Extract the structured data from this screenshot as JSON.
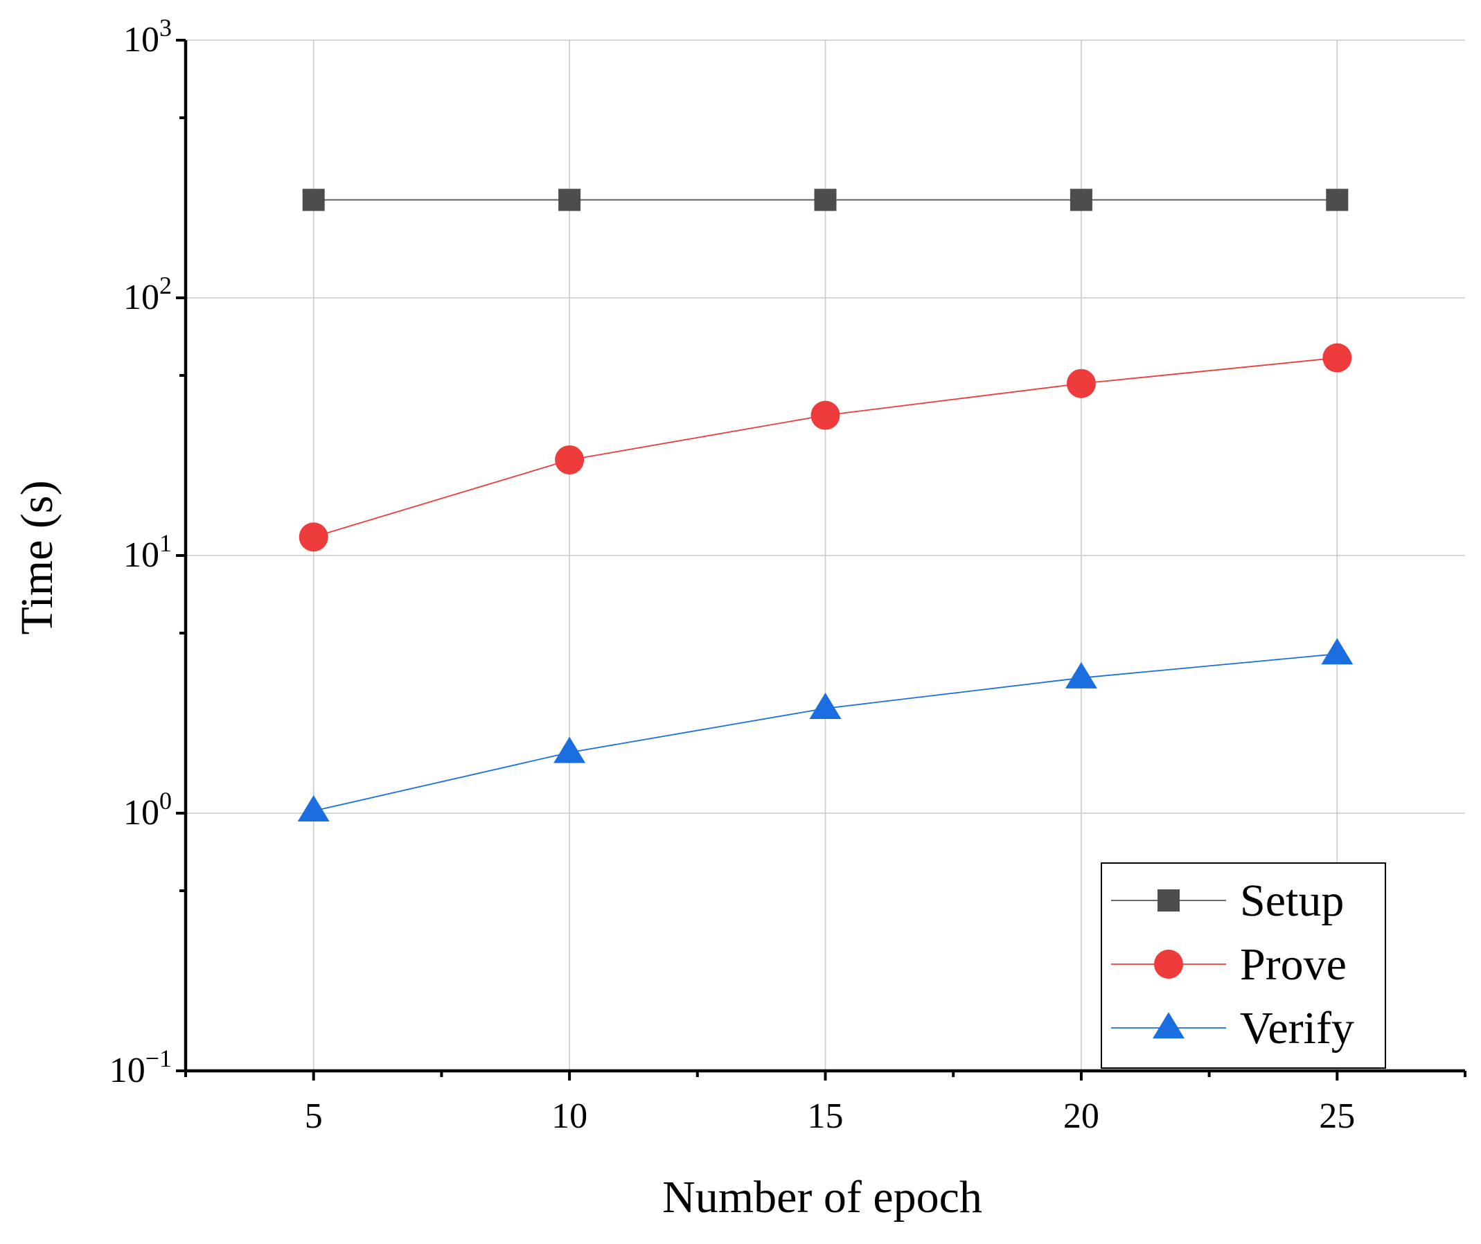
{
  "chart_data": {
    "type": "line",
    "title": "",
    "xlabel": "Number of epoch",
    "ylabel": "Time (s)",
    "xlim": [
      2.5,
      27.5
    ],
    "ylim": [
      0.1,
      1000
    ],
    "yscale": "log",
    "grid": true,
    "legend_position": "bottom-right",
    "x": [
      5,
      10,
      15,
      20,
      25
    ],
    "x_tick_labels": [
      "5",
      "10",
      "15",
      "20",
      "25"
    ],
    "y_ticks": [
      {
        "value": 0.1,
        "base": "10",
        "exponent": "−1"
      },
      {
        "value": 1,
        "base": "10",
        "exponent": "0"
      },
      {
        "value": 10,
        "base": "10",
        "exponent": "1"
      },
      {
        "value": 100,
        "base": "10",
        "exponent": "2"
      },
      {
        "value": 1000,
        "base": "10",
        "exponent": "3"
      }
    ],
    "series": [
      {
        "name": "Setup",
        "marker": "square",
        "color": "#4d4d4d",
        "line_color": "#555555",
        "values": [
          240,
          240,
          240,
          240,
          240
        ]
      },
      {
        "name": "Prove",
        "marker": "circle",
        "color": "#ee3b3b",
        "line_color": "#ee3b3b",
        "values": [
          11.8,
          23.5,
          35,
          46.5,
          58.5
        ]
      },
      {
        "name": "Verify",
        "marker": "triangle",
        "color": "#1a6ee0",
        "line_color": "#1a6ee0",
        "values": [
          1.02,
          1.72,
          2.55,
          3.35,
          4.15
        ]
      }
    ]
  }
}
